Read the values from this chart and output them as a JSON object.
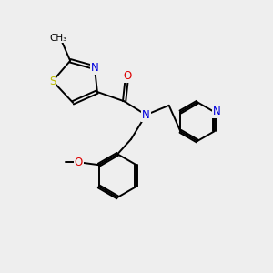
{
  "background_color": "#eeeeee",
  "atom_colors": {
    "C": "#000000",
    "N": "#0000dd",
    "O": "#dd0000",
    "S": "#bbbb00"
  },
  "figsize": [
    3.0,
    3.0
  ],
  "dpi": 100
}
